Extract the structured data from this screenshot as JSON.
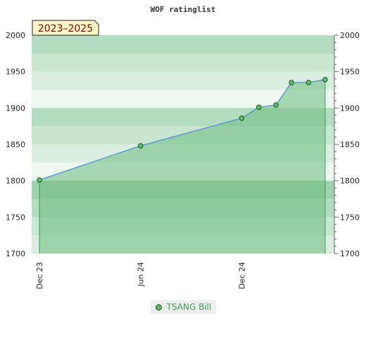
{
  "chart_data": {
    "type": "area",
    "title": "WOF ratinglist",
    "badge": "2023–2025",
    "series": [
      {
        "name": "TSANG Bill",
        "points": [
          {
            "x": "2023-12-01",
            "y": 1801
          },
          {
            "x": "2024-06-01",
            "y": 1848
          },
          {
            "x": "2024-12-01",
            "y": 1886
          },
          {
            "x": "2025-01-01",
            "y": 1901
          },
          {
            "x": "2025-02-01",
            "y": 1904
          },
          {
            "x": "2025-03-01",
            "y": 1935
          },
          {
            "x": "2025-04-01",
            "y": 1935
          },
          {
            "x": "2025-05-01",
            "y": 1939
          }
        ]
      }
    ],
    "x_ticks": [
      {
        "x": "2023-12-01",
        "label": "Dec 23"
      },
      {
        "x": "2024-06-01",
        "label": "Jun 24"
      },
      {
        "x": "2024-12-01",
        "label": "Dec 24"
      }
    ],
    "ylim": [
      1700,
      2000
    ],
    "y_ticks": [
      1700,
      1750,
      1800,
      1850,
      1900,
      1950,
      2000
    ],
    "grid": true,
    "legend_position": "bottom"
  },
  "colors": {
    "line": "#5b9bd5",
    "fill": "#6dbd80",
    "marker": "#5dbb6b",
    "marker_stroke": "#1f5a28",
    "badge_bg": "#fff8c4"
  }
}
